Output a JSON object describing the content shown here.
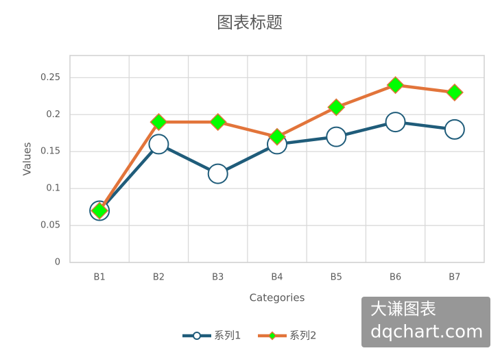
{
  "chart_data": {
    "type": "line",
    "title": "图表标题",
    "x_label": "Categories",
    "y_label": "Values",
    "categories": [
      "B1",
      "B2",
      "B3",
      "B4",
      "B5",
      "B6",
      "B7"
    ],
    "series": [
      {
        "name": "系列1",
        "color": "#1f5c7a",
        "marker": "circle",
        "marker_color": "#ffffff",
        "values": [
          0.07,
          0.16,
          0.12,
          0.16,
          0.17,
          0.19,
          0.18
        ]
      },
      {
        "name": "系列2",
        "color": "#e2743a",
        "marker": "diamond",
        "marker_color": "#00ff00",
        "values": [
          0.07,
          0.19,
          0.19,
          0.17,
          0.21,
          0.24,
          0.23
        ]
      }
    ],
    "ylim": [
      0,
      0.28
    ],
    "yticks": [
      0,
      0.05,
      0.1,
      0.15,
      0.2,
      0.25
    ],
    "grid": true,
    "legend": "bottom",
    "watermark": [
      "大谦图表",
      "dqchart.com"
    ]
  }
}
